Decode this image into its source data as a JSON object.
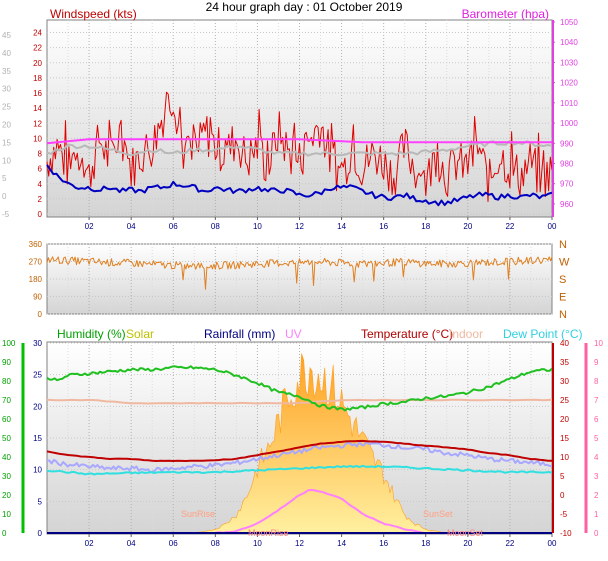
{
  "title": "24 hour graph day : 01 October 2019",
  "colors": {
    "wind": "#e00000",
    "gust_avg": "#b8b8b8",
    "wind_avg": "#0000c0",
    "baro": "#ff40ff",
    "direction": "#e08020",
    "humidity": "#20c020",
    "solar": "#ffb030",
    "rainfall": "#000080",
    "uv": "#ff80ff",
    "temperature": "#c00000",
    "indoor": "#f0b8a0",
    "dew_point": "#30e0e0",
    "apparent": "#a8a8ff",
    "sun_text": "#ffa080",
    "moon_text": "#ff8080",
    "left_axis": "#00c000",
    "right_axis": "#ff60a0"
  },
  "chart_data": [
    {
      "type": "line",
      "name": "wind",
      "labels": {
        "left": "Windspeed (kts)",
        "right": "Barometer (hpa)"
      },
      "x_ticks": [
        "02",
        "04",
        "06",
        "08",
        "10",
        "12",
        "14",
        "16",
        "18",
        "20",
        "22",
        "00"
      ],
      "y_left": {
        "range": [
          0,
          25
        ],
        "ticks": [
          "0",
          "2",
          "4",
          "6",
          "8",
          "10",
          "12",
          "14",
          "16",
          "18",
          "20",
          "22",
          "24"
        ]
      },
      "y_outer": {
        "range": [
          -5,
          45
        ],
        "ticks": [
          "-5",
          "0",
          "5",
          "10",
          "15",
          "20",
          "25",
          "30",
          "35",
          "40",
          "45"
        ]
      },
      "y_right": {
        "range": [
          955,
          1050
        ],
        "ticks": [
          "960",
          "970",
          "980",
          "990",
          "1000",
          "1010",
          "1020",
          "1030",
          "1040",
          "1050"
        ]
      },
      "series": [
        {
          "key": "gust",
          "hours": [
            0,
            0.5,
            1,
            1.5,
            2,
            2.5,
            3,
            3.5,
            4,
            4.5,
            5,
            5.5,
            6,
            6.5,
            7,
            7.5,
            8,
            8.5,
            9,
            9.5,
            10,
            10.5,
            11,
            11.5,
            12,
            12.5,
            13,
            13.5,
            14,
            14.5,
            15,
            15.5,
            16,
            16.5,
            17,
            17.5,
            18,
            18.5,
            19,
            19.5,
            20,
            20.5,
            21,
            21.5,
            22,
            22.5,
            23,
            23.5,
            24
          ],
          "values": [
            8,
            10,
            7,
            9,
            6,
            11,
            8,
            12,
            7,
            9,
            10,
            14,
            17,
            9,
            8,
            12,
            10,
            9,
            11,
            8,
            10,
            7,
            12,
            9,
            8,
            11,
            13,
            8,
            6,
            10,
            7,
            9,
            8,
            6,
            10,
            7,
            5,
            9,
            6,
            8,
            7,
            10,
            5,
            9,
            7,
            6,
            8,
            5,
            7
          ]
        },
        {
          "key": "wind_avg",
          "hours": [
            0,
            0.5,
            1,
            1.5,
            2,
            2.5,
            3,
            3.5,
            4,
            4.5,
            5,
            5.5,
            6,
            6.5,
            7,
            7.5,
            8,
            8.5,
            9,
            9.5,
            10,
            10.5,
            11,
            11.5,
            12,
            12.5,
            13,
            13.5,
            14,
            14.5,
            15,
            15.5,
            16,
            16.5,
            17,
            17.5,
            18,
            18.5,
            19,
            19.5,
            20,
            20.5,
            21,
            21.5,
            22,
            22.5,
            23,
            23.5,
            24
          ],
          "values": [
            6.5,
            5,
            4,
            3.5,
            3.5,
            3.2,
            3.5,
            3,
            3.2,
            3,
            3.5,
            3.5,
            4,
            3.8,
            3.5,
            3,
            3.5,
            3.2,
            3,
            3.2,
            3.5,
            3,
            3.2,
            3,
            2.5,
            2.5,
            2.8,
            3.5,
            3.5,
            3.5,
            3,
            2.5,
            2.2,
            2.2,
            2.5,
            2,
            1.8,
            1.5,
            1.5,
            1.8,
            2.2,
            2.5,
            2.5,
            2.2,
            2.5,
            2.2,
            2.5,
            2.2,
            2.5
          ]
        },
        {
          "key": "gust_avg",
          "hours": [
            0,
            1,
            2,
            3,
            4,
            5,
            6,
            7,
            8,
            9,
            10,
            11,
            12,
            13,
            14,
            15,
            16,
            17,
            18,
            19,
            20,
            21,
            22,
            23,
            24
          ],
          "values": [
            8,
            9,
            9,
            8.5,
            8,
            8.5,
            8,
            8.5,
            8.5,
            9,
            8.5,
            8,
            8,
            8,
            8,
            8,
            8,
            8,
            8.2,
            8.5,
            9,
            9.3,
            9.5,
            9.3,
            9
          ]
        },
        {
          "key": "baro",
          "hours": [
            0,
            1,
            2,
            3,
            4,
            5,
            6,
            7,
            8,
            9,
            10,
            11,
            12,
            13,
            14,
            15,
            16,
            17,
            18,
            19,
            20,
            21,
            22,
            23,
            24
          ],
          "values": [
            990,
            991,
            992,
            992,
            992,
            992,
            992,
            992,
            992,
            992,
            992,
            992,
            992,
            991.5,
            991,
            990.5,
            990.5,
            990.5,
            990.5,
            990.5,
            990.5,
            990.5,
            990.5,
            990.5,
            990.5
          ]
        }
      ]
    },
    {
      "type": "scatter",
      "name": "direction",
      "y_left": {
        "range": [
          0,
          360
        ],
        "ticks": [
          "0",
          "90",
          "180",
          "270",
          "360"
        ]
      },
      "y_right": {
        "ticks": [
          "N",
          "W",
          "S",
          "E",
          "N"
        ]
      },
      "x_ticks": [
        "02",
        "04",
        "06",
        "08",
        "10",
        "12",
        "14",
        "16",
        "18",
        "20",
        "22",
        "00"
      ],
      "series": [
        {
          "key": "direction",
          "hours": [
            0,
            1,
            2,
            3,
            4,
            5,
            6,
            7,
            8,
            9,
            10,
            11,
            12,
            13,
            14,
            15,
            16,
            17,
            18,
            19,
            20,
            21,
            22,
            23,
            24
          ],
          "values": [
            280,
            275,
            270,
            265,
            262,
            255,
            250,
            245,
            248,
            252,
            258,
            262,
            265,
            268,
            262,
            258,
            262,
            268,
            260,
            258,
            262,
            265,
            270,
            275,
            280
          ]
        }
      ]
    },
    {
      "type": "line",
      "name": "climate",
      "labels": {
        "humidity": "Humidity (%)",
        "solar": "Solar",
        "rainfall": "Rainfall (mm)",
        "uv": "UV",
        "temperature": "Temperature (°C)",
        "indoor": "Indoor",
        "dew_point": "Dew Point (°C)"
      },
      "x_ticks": [
        "02",
        "04",
        "06",
        "08",
        "10",
        "12",
        "14",
        "16",
        "18",
        "20",
        "22",
        "00"
      ],
      "y_humidity": {
        "range": [
          0,
          100
        ],
        "ticks": [
          "0",
          "10",
          "20",
          "30",
          "40",
          "50",
          "60",
          "70",
          "80",
          "90",
          "100"
        ]
      },
      "y_rain": {
        "range": [
          0,
          30
        ],
        "ticks": [
          "0",
          "5",
          "10",
          "15",
          "20",
          "25",
          "30"
        ]
      },
      "y_temp": {
        "range": [
          -10,
          40
        ],
        "ticks": [
          "-10",
          "-5",
          "0",
          "5",
          "10",
          "15",
          "20",
          "25",
          "30",
          "35",
          "40"
        ]
      },
      "y_uv": {
        "range": [
          0,
          10
        ],
        "ticks": [
          "0",
          "1",
          "2",
          "3",
          "4",
          "5",
          "6",
          "7",
          "8",
          "9",
          "10"
        ]
      },
      "events": {
        "sunrise": "SunRise",
        "sunset": "SunSet",
        "moonrise": "MoonRise",
        "moonset": "MoonSet"
      },
      "series": [
        {
          "key": "humidity",
          "hours": [
            0,
            0.5,
            1,
            2,
            3,
            4,
            5,
            6,
            7,
            8,
            9,
            10,
            11,
            12,
            13,
            14,
            15,
            16,
            17,
            18,
            19,
            20,
            21,
            22,
            23,
            24
          ],
          "values": [
            82,
            80,
            83,
            84,
            85,
            86,
            86,
            87,
            87,
            86,
            83,
            79,
            74,
            72,
            67,
            65,
            66,
            68,
            69,
            71,
            72,
            74,
            77,
            81,
            85,
            86
          ]
        },
        {
          "key": "indoor",
          "hours": [
            0,
            2,
            4,
            6,
            8,
            10,
            12,
            14,
            16,
            18,
            20,
            22,
            24
          ],
          "values": [
            21,
            21,
            20.5,
            20.5,
            20.5,
            20.5,
            20.5,
            21,
            21,
            21,
            21,
            21,
            21
          ]
        },
        {
          "key": "temperature",
          "hours": [
            0,
            1,
            2,
            3,
            4,
            5,
            6,
            7,
            8,
            9,
            10,
            11,
            12,
            13,
            14,
            15,
            16,
            17,
            18,
            19,
            20,
            21,
            22,
            23,
            24
          ],
          "values": [
            11.5,
            10.5,
            10,
            9.5,
            9.5,
            9,
            9,
            9,
            9.2,
            9.5,
            10.5,
            11.5,
            12.5,
            13.5,
            14,
            14.2,
            14,
            13.5,
            13,
            12.5,
            12,
            11,
            10.5,
            9.5,
            9
          ]
        },
        {
          "key": "apparent",
          "hours": [
            0,
            1,
            2,
            3,
            4,
            5,
            6,
            7,
            8,
            9,
            10,
            11,
            12,
            13,
            14,
            15,
            16,
            17,
            18,
            19,
            20,
            21,
            22,
            23,
            24
          ],
          "values": [
            9,
            8,
            7.5,
            7,
            7,
            6.5,
            7,
            7.5,
            7.8,
            8.5,
            9.5,
            10.5,
            11.5,
            12.5,
            13,
            13.5,
            13.2,
            12.5,
            12,
            11,
            10.5,
            9.5,
            9,
            8.5,
            8
          ]
        },
        {
          "key": "dew_point",
          "hours": [
            0,
            2,
            4,
            6,
            8,
            10,
            12,
            14,
            16,
            18,
            20,
            22,
            24
          ],
          "values": [
            6.5,
            5.5,
            5.8,
            6,
            6,
            6.5,
            7,
            7.5,
            7.5,
            7,
            6.5,
            6,
            6
          ]
        },
        {
          "key": "solar",
          "hours": [
            7,
            8,
            8.5,
            9,
            9.5,
            10,
            10.5,
            11,
            11.5,
            12,
            12.5,
            13,
            13.5,
            14,
            14.5,
            15,
            15.5,
            16,
            16.5,
            17,
            17.5,
            18,
            18.5,
            19
          ],
          "values": [
            0,
            0.2,
            0.5,
            1,
            2,
            3.5,
            4.5,
            6,
            7.5,
            8.5,
            9,
            8.5,
            8,
            7,
            6,
            5,
            4,
            3.2,
            2,
            1,
            0.5,
            0.2,
            0.1,
            0
          ]
        },
        {
          "key": "uv",
          "hours": [
            8,
            9,
            10,
            11,
            11.5,
            12,
            12.5,
            13,
            13.5,
            14,
            14.5,
            15,
            16,
            17,
            18,
            19
          ],
          "values": [
            0,
            0.1,
            0.5,
            1.2,
            1.6,
            2,
            2.3,
            2.2,
            2,
            1.8,
            1.4,
            1,
            0.5,
            0.2,
            0,
            0
          ]
        },
        {
          "key": "rainfall",
          "hours": [
            0,
            24
          ],
          "values": [
            0,
            0
          ]
        }
      ]
    }
  ]
}
